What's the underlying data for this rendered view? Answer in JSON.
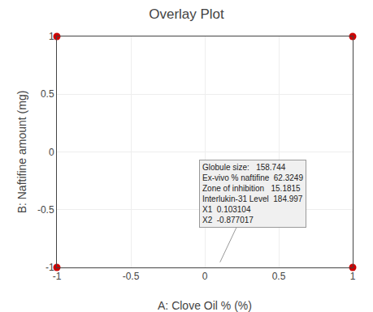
{
  "chart_data": {
    "type": "scatter",
    "title": "Overlay Plot",
    "x_label": "A: Clove Oil % (%)",
    "y_label": "B: Naftifine amount (mg)",
    "x": [
      -1,
      1,
      -1,
      1
    ],
    "values": [
      1,
      1,
      -1,
      -1
    ],
    "color": "#CC0000",
    "marker": "circle",
    "xlim": [
      -1,
      1
    ],
    "ylim": [
      -1,
      1
    ],
    "xticks": [
      -1,
      -0.5,
      0,
      0.5,
      1
    ],
    "yticks": [
      -1,
      -0.5,
      0,
      0.5,
      1
    ],
    "grid": true,
    "annotations": [
      {
        "x": 0.103104,
        "y": -0.955,
        "text_lines": [
          "Globule size:   158.744",
          "Ex-vivo % naftifine  62.3249",
          "Zone of inhibition   15.1815",
          "Interlukin-31 Level  184.997",
          "X1  0.103104",
          "X2  -0.877017"
        ]
      }
    ]
  }
}
